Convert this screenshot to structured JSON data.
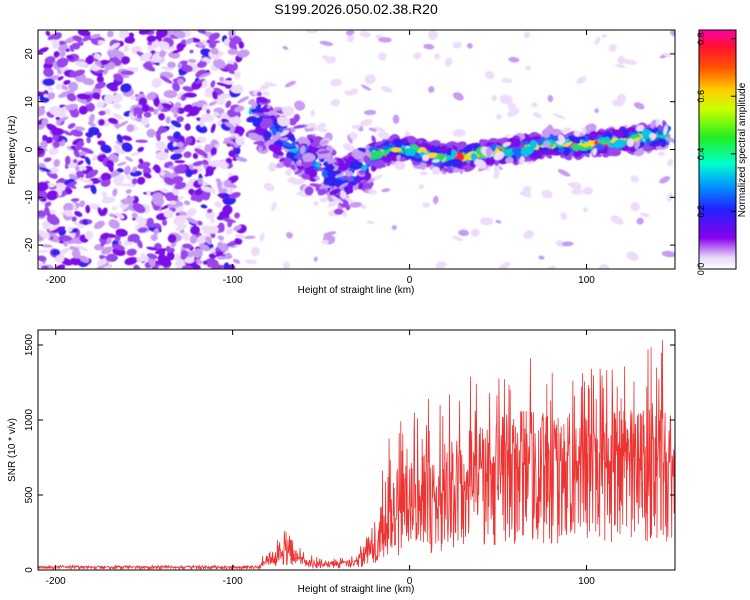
{
  "figure_title": "S199.2026.050.02.38.R20",
  "colors": {
    "snr_line": "#ee3333",
    "axis": "#000000"
  },
  "chart_data": [
    {
      "type": "heatmap",
      "title": "S199.2026.050.02.38.R20",
      "xlabel": "Height of straight line (km)",
      "ylabel": "Frequency (Hz)",
      "xlim": [
        -210,
        150
      ],
      "ylim": [
        -25,
        25
      ],
      "xticks": [
        -200,
        -100,
        0,
        100
      ],
      "yticks": [
        -20,
        -10,
        0,
        10,
        20
      ],
      "colorbar": {
        "label": "Normalized spectral amplitude",
        "range": [
          0,
          0.83
        ],
        "ticks": [
          0.0,
          0.2,
          0.4,
          0.6,
          0.8
        ],
        "colormap": "rainbow (white-violet-blue-cyan-green-yellow-red-magenta)"
      },
      "ridge": {
        "description": "dominant frequency ridge vs height",
        "x": [
          -90,
          -80,
          -70,
          -60,
          -50,
          -40,
          -30,
          -20,
          -10,
          0,
          20,
          40,
          60,
          80,
          100,
          120,
          145
        ],
        "y": [
          8,
          5,
          2,
          -1,
          -4,
          -7,
          -5,
          -1,
          0,
          0,
          -2,
          -1,
          0,
          1,
          1,
          2,
          3
        ]
      }
    },
    {
      "type": "line",
      "title": "",
      "xlabel": "Height of straight line (km)",
      "ylabel": "SNR (10 * v/v)",
      "xlim": [
        -210,
        150
      ],
      "ylim": [
        0,
        1600
      ],
      "xticks": [
        -200,
        -100,
        0,
        100
      ],
      "yticks": [
        0,
        500,
        1000,
        1500
      ],
      "envelope": {
        "description": "approximate SNR level (mean / typical peak) vs height",
        "x": [
          -210,
          -100,
          -85,
          -80,
          -72,
          -65,
          -60,
          -50,
          -40,
          -30,
          -20,
          -15,
          -10,
          0,
          20,
          40,
          60,
          80,
          100,
          120,
          140,
          150
        ],
        "mean": [
          20,
          20,
          20,
          70,
          120,
          90,
          50,
          40,
          40,
          50,
          180,
          250,
          320,
          380,
          520,
          620,
          700,
          700,
          710,
          720,
          720,
          700
        ],
        "peak": [
          30,
          30,
          30,
          200,
          280,
          220,
          120,
          80,
          80,
          100,
          500,
          900,
          1000,
          1100,
          1200,
          1350,
          1450,
          1400,
          1380,
          1420,
          1560,
          1500
        ]
      }
    }
  ]
}
